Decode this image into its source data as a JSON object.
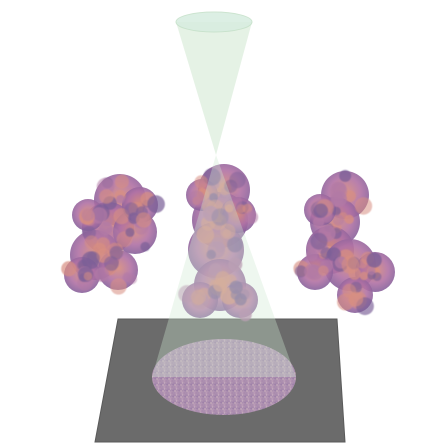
{
  "colors": {
    "background": "#ffffff",
    "detector_plane": "#6b6b6b",
    "detector_plane_edge": "#5a5a5a",
    "beam": "#cfe8d0",
    "beam_edge": "#b9d8bc",
    "molecule_base": "#a56aa3",
    "molecule_highlight": "#d58a7a",
    "molecule_shadow": "#6a4f8e",
    "projection": "#b18fb0"
  },
  "scene": {
    "molecule_views": [
      {
        "view": "left"
      },
      {
        "view": "center"
      },
      {
        "view": "right"
      }
    ],
    "beam": {
      "shape": "cone-hourglass"
    },
    "detector": {
      "shape": "plane"
    },
    "projection": {
      "shape": "disc"
    }
  }
}
